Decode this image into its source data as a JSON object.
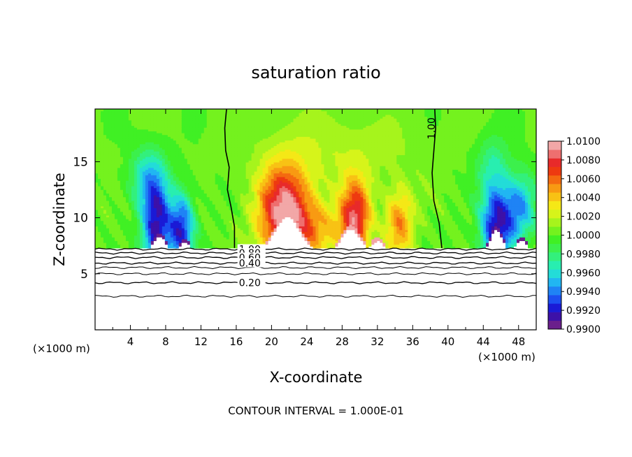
{
  "chart_data": {
    "type": "heatmap",
    "title": "saturation ratio",
    "xlabel": "X-coordinate",
    "ylabel": "Z-coordinate",
    "x_unit": "(×1000 m)",
    "x_unit_right": "(×1000 m)",
    "footer": "CONTOUR INTERVAL = 1.000E-01",
    "xlim": [
      0,
      50
    ],
    "ylim": [
      0,
      19.7
    ],
    "x_ticks": [
      4,
      8,
      12,
      16,
      20,
      24,
      28,
      32,
      36,
      40,
      44,
      48
    ],
    "x_tick_labels": [
      "4",
      "8",
      "12",
      "16",
      "20",
      "24",
      "28",
      "32",
      "36",
      "40",
      "44",
      "48"
    ],
    "y_ticks": [
      5,
      10,
      15
    ],
    "y_tick_labels": [
      "5",
      "10",
      "15"
    ],
    "colorbar": {
      "min": 0.99,
      "max": 1.01,
      "step": 0.001,
      "labels": [
        "1.0100",
        "1.0080",
        "1.0060",
        "1.0040",
        "1.0020",
        "1.0000",
        "0.9980",
        "0.9960",
        "0.9940",
        "0.9920",
        "0.9900"
      ],
      "label_values": [
        1.01,
        1.008,
        1.006,
        1.004,
        1.002,
        1.0,
        0.998,
        0.996,
        0.994,
        0.992,
        0.99
      ],
      "colors": [
        "#6b1f8c",
        "#3d11a8",
        "#1a1ad6",
        "#1c4ff0",
        "#1f83f5",
        "#21b6f2",
        "#23dcd8",
        "#28eeb0",
        "#33f07c",
        "#3cf04c",
        "#40f024",
        "#74f21e",
        "#a6f41c",
        "#d6f41a",
        "#f5e816",
        "#f8c214",
        "#f89a12",
        "#f46a10",
        "#ee3a10",
        "#e82a2a",
        "#ee6f6f",
        "#f2a7a7"
      ]
    },
    "field_base_z": 7.3,
    "mound_base_z": 7.0,
    "contour_lines": [
      {
        "label": "1.00",
        "z": 7.2,
        "label_x": 16.3
      },
      {
        "label": "0.80",
        "z": 6.85,
        "label_x": 16.3
      },
      {
        "label": "0.60",
        "z": 6.45,
        "label_x": 16.3
      },
      {
        "label": "0.40",
        "z": 5.95,
        "label_x": 16.3
      },
      {
        "label": "0.20",
        "z": 4.2,
        "label_x": 16.3
      },
      {
        "label": "",
        "z": 5.55,
        "label_x": 0
      },
      {
        "label": "",
        "z": 5.0,
        "label_x": 0
      },
      {
        "label": "",
        "z": 3.0,
        "label_x": 0
      }
    ],
    "plume_contours": [
      {
        "label": "1.00",
        "points": [
          [
            14.9,
            19.7
          ],
          [
            14.7,
            18.0
          ],
          [
            14.8,
            16.0
          ],
          [
            15.2,
            14.5
          ],
          [
            15.0,
            12.5
          ],
          [
            15.4,
            11.0
          ],
          [
            15.8,
            9.2
          ],
          [
            15.8,
            7.3
          ]
        ]
      },
      {
        "label": "1.00",
        "label_x": 38.5,
        "label_z": 17.0,
        "points": [
          [
            38.5,
            19.7
          ],
          [
            38.6,
            18.0
          ],
          [
            38.4,
            16.0
          ],
          [
            38.2,
            14.0
          ],
          [
            38.4,
            11.5
          ],
          [
            39.0,
            9.5
          ],
          [
            39.3,
            7.3
          ]
        ]
      }
    ],
    "hot_plumes": [
      {
        "x": 21.5,
        "z": 10.5,
        "sx": 3.0,
        "sz": 4.2,
        "amp": 0.0105
      },
      {
        "x": 29.5,
        "z": 10.0,
        "sx": 1.7,
        "sz": 3.4,
        "amp": 0.0088
      },
      {
        "x": 34.5,
        "z": 9.5,
        "sx": 1.6,
        "sz": 3.2,
        "amp": 0.0055
      },
      {
        "x": 25.5,
        "z": 9.0,
        "sx": 3.0,
        "sz": 2.5,
        "amp": 0.0035
      },
      {
        "x": 27.5,
        "z": 16.0,
        "sx": 8.0,
        "sz": 3.5,
        "amp": 0.0016
      }
    ],
    "cold_plumes": [
      {
        "x": 7.0,
        "z": 9.0,
        "sx": 1.6,
        "sz": 4.5,
        "amp": -0.0095
      },
      {
        "x": 9.8,
        "z": 9.0,
        "sx": 1.4,
        "sz": 3.2,
        "amp": -0.0085
      },
      {
        "x": 5.8,
        "z": 13.5,
        "sx": 2.0,
        "sz": 2.8,
        "amp": -0.004
      },
      {
        "x": 45.5,
        "z": 9.2,
        "sx": 1.8,
        "sz": 4.0,
        "amp": -0.0095
      },
      {
        "x": 48.2,
        "z": 11.0,
        "sx": 1.8,
        "sz": 3.0,
        "amp": -0.006
      },
      {
        "x": 45.0,
        "z": 15.0,
        "sx": 1.8,
        "sz": 2.5,
        "amp": -0.0025
      }
    ],
    "white_mounds": [
      {
        "x": 7.3,
        "h": 1.35,
        "w": 0.9
      },
      {
        "x": 10.2,
        "h": 0.8,
        "w": 0.8
      },
      {
        "x": 21.8,
        "h": 3.1,
        "w": 1.9
      },
      {
        "x": 29.0,
        "h": 2.0,
        "w": 1.4
      },
      {
        "x": 32.0,
        "h": 0.9,
        "w": 1.0
      },
      {
        "x": 45.5,
        "h": 1.9,
        "w": 0.9
      },
      {
        "x": 48.3,
        "h": 1.0,
        "w": 0.8
      }
    ]
  }
}
